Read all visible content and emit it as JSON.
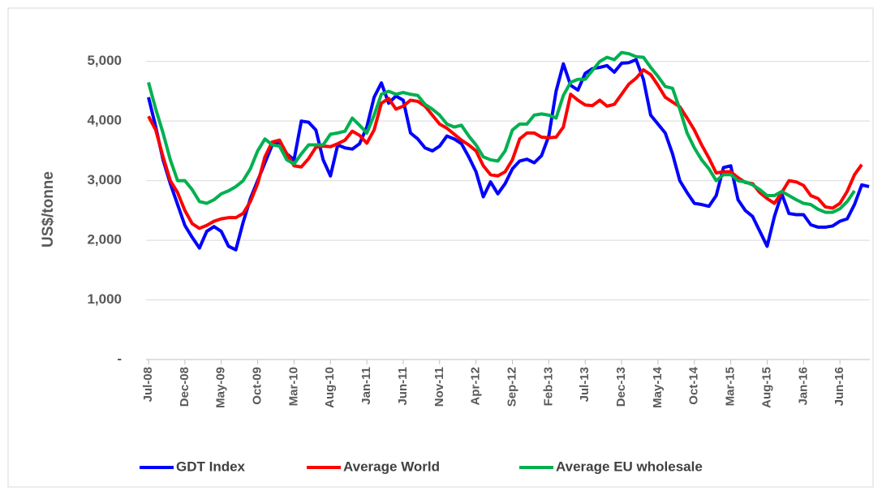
{
  "chart_data": {
    "type": "line",
    "y_label": "US$/tonne",
    "categories": [
      "Jul-08",
      null,
      null,
      null,
      null,
      "Dec-08",
      null,
      null,
      null,
      null,
      "May-09",
      null,
      null,
      null,
      null,
      "Oct-09",
      null,
      null,
      null,
      null,
      "Mar-10",
      null,
      null,
      null,
      null,
      "Aug-10",
      null,
      null,
      null,
      null,
      "Jan-11",
      null,
      null,
      null,
      null,
      "Jun-11",
      null,
      null,
      null,
      null,
      "Nov-11",
      null,
      null,
      null,
      null,
      "Apr-12",
      null,
      null,
      null,
      null,
      "Sep-12",
      null,
      null,
      null,
      null,
      "Feb-13",
      null,
      null,
      null,
      null,
      "Jul-13",
      null,
      null,
      null,
      null,
      "Dec-13",
      null,
      null,
      null,
      null,
      "May-14",
      null,
      null,
      null,
      null,
      "Oct-14",
      null,
      null,
      null,
      null,
      "Mar-15",
      null,
      null,
      null,
      null,
      "Aug-15",
      null,
      null,
      null,
      null,
      "Jan-16",
      null,
      null,
      null,
      null,
      "Jun-16",
      null,
      null,
      null,
      null
    ],
    "series": [
      {
        "name": "GDT Index",
        "color": "#0000ff",
        "values": [
          4400,
          3900,
          3350,
          2950,
          2600,
          2250,
          2050,
          1870,
          2150,
          2230,
          2150,
          1900,
          1840,
          2300,
          2700,
          3000,
          3300,
          3600,
          3650,
          3450,
          3350,
          4000,
          3980,
          3850,
          3350,
          3080,
          3600,
          3550,
          3530,
          3620,
          3900,
          4400,
          4640,
          4300,
          4420,
          4350,
          3800,
          3700,
          3550,
          3500,
          3580,
          3750,
          3700,
          3620,
          3400,
          3150,
          2730,
          2980,
          2780,
          2950,
          3200,
          3330,
          3360,
          3300,
          3420,
          3750,
          4500,
          4960,
          4600,
          4520,
          4800,
          4880,
          4900,
          4930,
          4820,
          4970,
          4980,
          5030,
          4700,
          4100,
          3950,
          3800,
          3450,
          3000,
          2800,
          2620,
          2600,
          2570,
          2750,
          3220,
          3250,
          2680,
          2500,
          2400,
          2150,
          1900,
          2400,
          2780,
          2450,
          2430,
          2430,
          2260,
          2220,
          2220,
          2240,
          2320,
          2360,
          2600,
          2930,
          2900
        ]
      },
      {
        "name": "Average World",
        "color": "#ff0000",
        "values": [
          4080,
          3850,
          3400,
          3000,
          2800,
          2500,
          2280,
          2200,
          2250,
          2320,
          2360,
          2380,
          2380,
          2450,
          2650,
          2950,
          3400,
          3650,
          3680,
          3450,
          3250,
          3230,
          3370,
          3560,
          3580,
          3570,
          3620,
          3680,
          3830,
          3760,
          3630,
          3850,
          4300,
          4380,
          4200,
          4250,
          4350,
          4330,
          4250,
          4100,
          3950,
          3880,
          3780,
          3680,
          3600,
          3500,
          3250,
          3100,
          3080,
          3150,
          3350,
          3700,
          3800,
          3800,
          3730,
          3720,
          3730,
          3900,
          4450,
          4350,
          4270,
          4260,
          4350,
          4250,
          4280,
          4450,
          4620,
          4720,
          4860,
          4780,
          4600,
          4400,
          4320,
          4240,
          4050,
          3850,
          3600,
          3380,
          3130,
          3150,
          3150,
          3050,
          2970,
          2950,
          2800,
          2700,
          2620,
          2800,
          3000,
          2980,
          2920,
          2750,
          2700,
          2560,
          2540,
          2620,
          2820,
          3100,
          3270,
          null
        ]
      },
      {
        "name": "Average EU wholesale",
        "color": "#00b050",
        "values": [
          4650,
          4200,
          3800,
          3350,
          3000,
          3000,
          2850,
          2650,
          2620,
          2680,
          2780,
          2830,
          2900,
          3000,
          3200,
          3500,
          3700,
          3600,
          3580,
          3350,
          3280,
          3450,
          3600,
          3600,
          3600,
          3780,
          3800,
          3830,
          4050,
          3930,
          3800,
          4100,
          4450,
          4500,
          4450,
          4480,
          4450,
          4430,
          4280,
          4200,
          4100,
          3950,
          3900,
          3930,
          3750,
          3600,
          3400,
          3350,
          3330,
          3500,
          3850,
          3950,
          3950,
          4100,
          4120,
          4100,
          4050,
          4430,
          4650,
          4700,
          4700,
          4850,
          5000,
          5070,
          5030,
          5150,
          5130,
          5080,
          5070,
          4900,
          4750,
          4580,
          4550,
          4200,
          3800,
          3550,
          3350,
          3200,
          3000,
          3100,
          3100,
          3000,
          2980,
          2930,
          2850,
          2750,
          2750,
          2820,
          2750,
          2680,
          2620,
          2600,
          2520,
          2470,
          2470,
          2530,
          2650,
          2830,
          null,
          null
        ]
      }
    ],
    "ylim": [
      0,
      5500
    ],
    "yticks": [
      {
        "value": 0,
        "label": "-"
      },
      {
        "value": 1000,
        "label": "1,000"
      },
      {
        "value": 2000,
        "label": "2,000"
      },
      {
        "value": 3000,
        "label": "3,000"
      },
      {
        "value": 4000,
        "label": "4,000"
      },
      {
        "value": 5000,
        "label": "5,000"
      }
    ],
    "grid": true,
    "legend": "bottom"
  }
}
